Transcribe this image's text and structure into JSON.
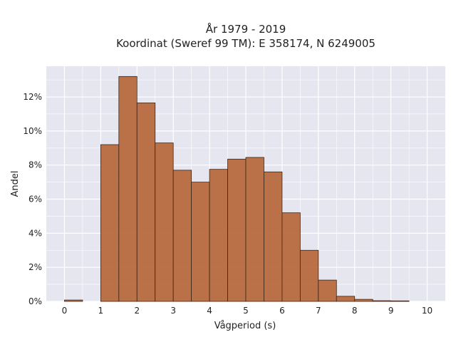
{
  "chart_data": {
    "type": "bar",
    "title": "År 1979 - 2019",
    "subtitle": "Koordinat (Sweref 99 TM): E 358174, N 6249005",
    "xlabel": "Vågperiod (s)",
    "ylabel": "Andel",
    "xlim": [
      -0.5,
      10.5
    ],
    "ylim": [
      0,
      13.8
    ],
    "x_ticks": [
      "0",
      "1",
      "2",
      "3",
      "4",
      "5",
      "6",
      "7",
      "8",
      "9",
      "10"
    ],
    "y_ticks": [
      "0%",
      "2%",
      "4%",
      "6%",
      "8%",
      "10%",
      "12%"
    ],
    "bin_width": 0.5,
    "bins": [
      {
        "start": 0.0,
        "value": 0.08
      },
      {
        "start": 0.5,
        "value": 0.0
      },
      {
        "start": 1.0,
        "value": 9.2
      },
      {
        "start": 1.5,
        "value": 13.2
      },
      {
        "start": 2.0,
        "value": 11.65
      },
      {
        "start": 2.5,
        "value": 9.3
      },
      {
        "start": 3.0,
        "value": 7.7
      },
      {
        "start": 3.5,
        "value": 7.0
      },
      {
        "start": 4.0,
        "value": 7.75
      },
      {
        "start": 4.5,
        "value": 8.35
      },
      {
        "start": 5.0,
        "value": 8.45
      },
      {
        "start": 5.5,
        "value": 7.6
      },
      {
        "start": 6.0,
        "value": 5.2
      },
      {
        "start": 6.5,
        "value": 3.0
      },
      {
        "start": 7.0,
        "value": 1.25
      },
      {
        "start": 7.5,
        "value": 0.3
      },
      {
        "start": 8.0,
        "value": 0.12
      },
      {
        "start": 8.5,
        "value": 0.04
      },
      {
        "start": 9.0,
        "value": 0.03
      }
    ],
    "bar_color": "#b86a3e",
    "bar_edge_color": "#3d2416",
    "plot_background": "#e5e6ef",
    "grid": true,
    "grid_color": "#ffffff"
  }
}
